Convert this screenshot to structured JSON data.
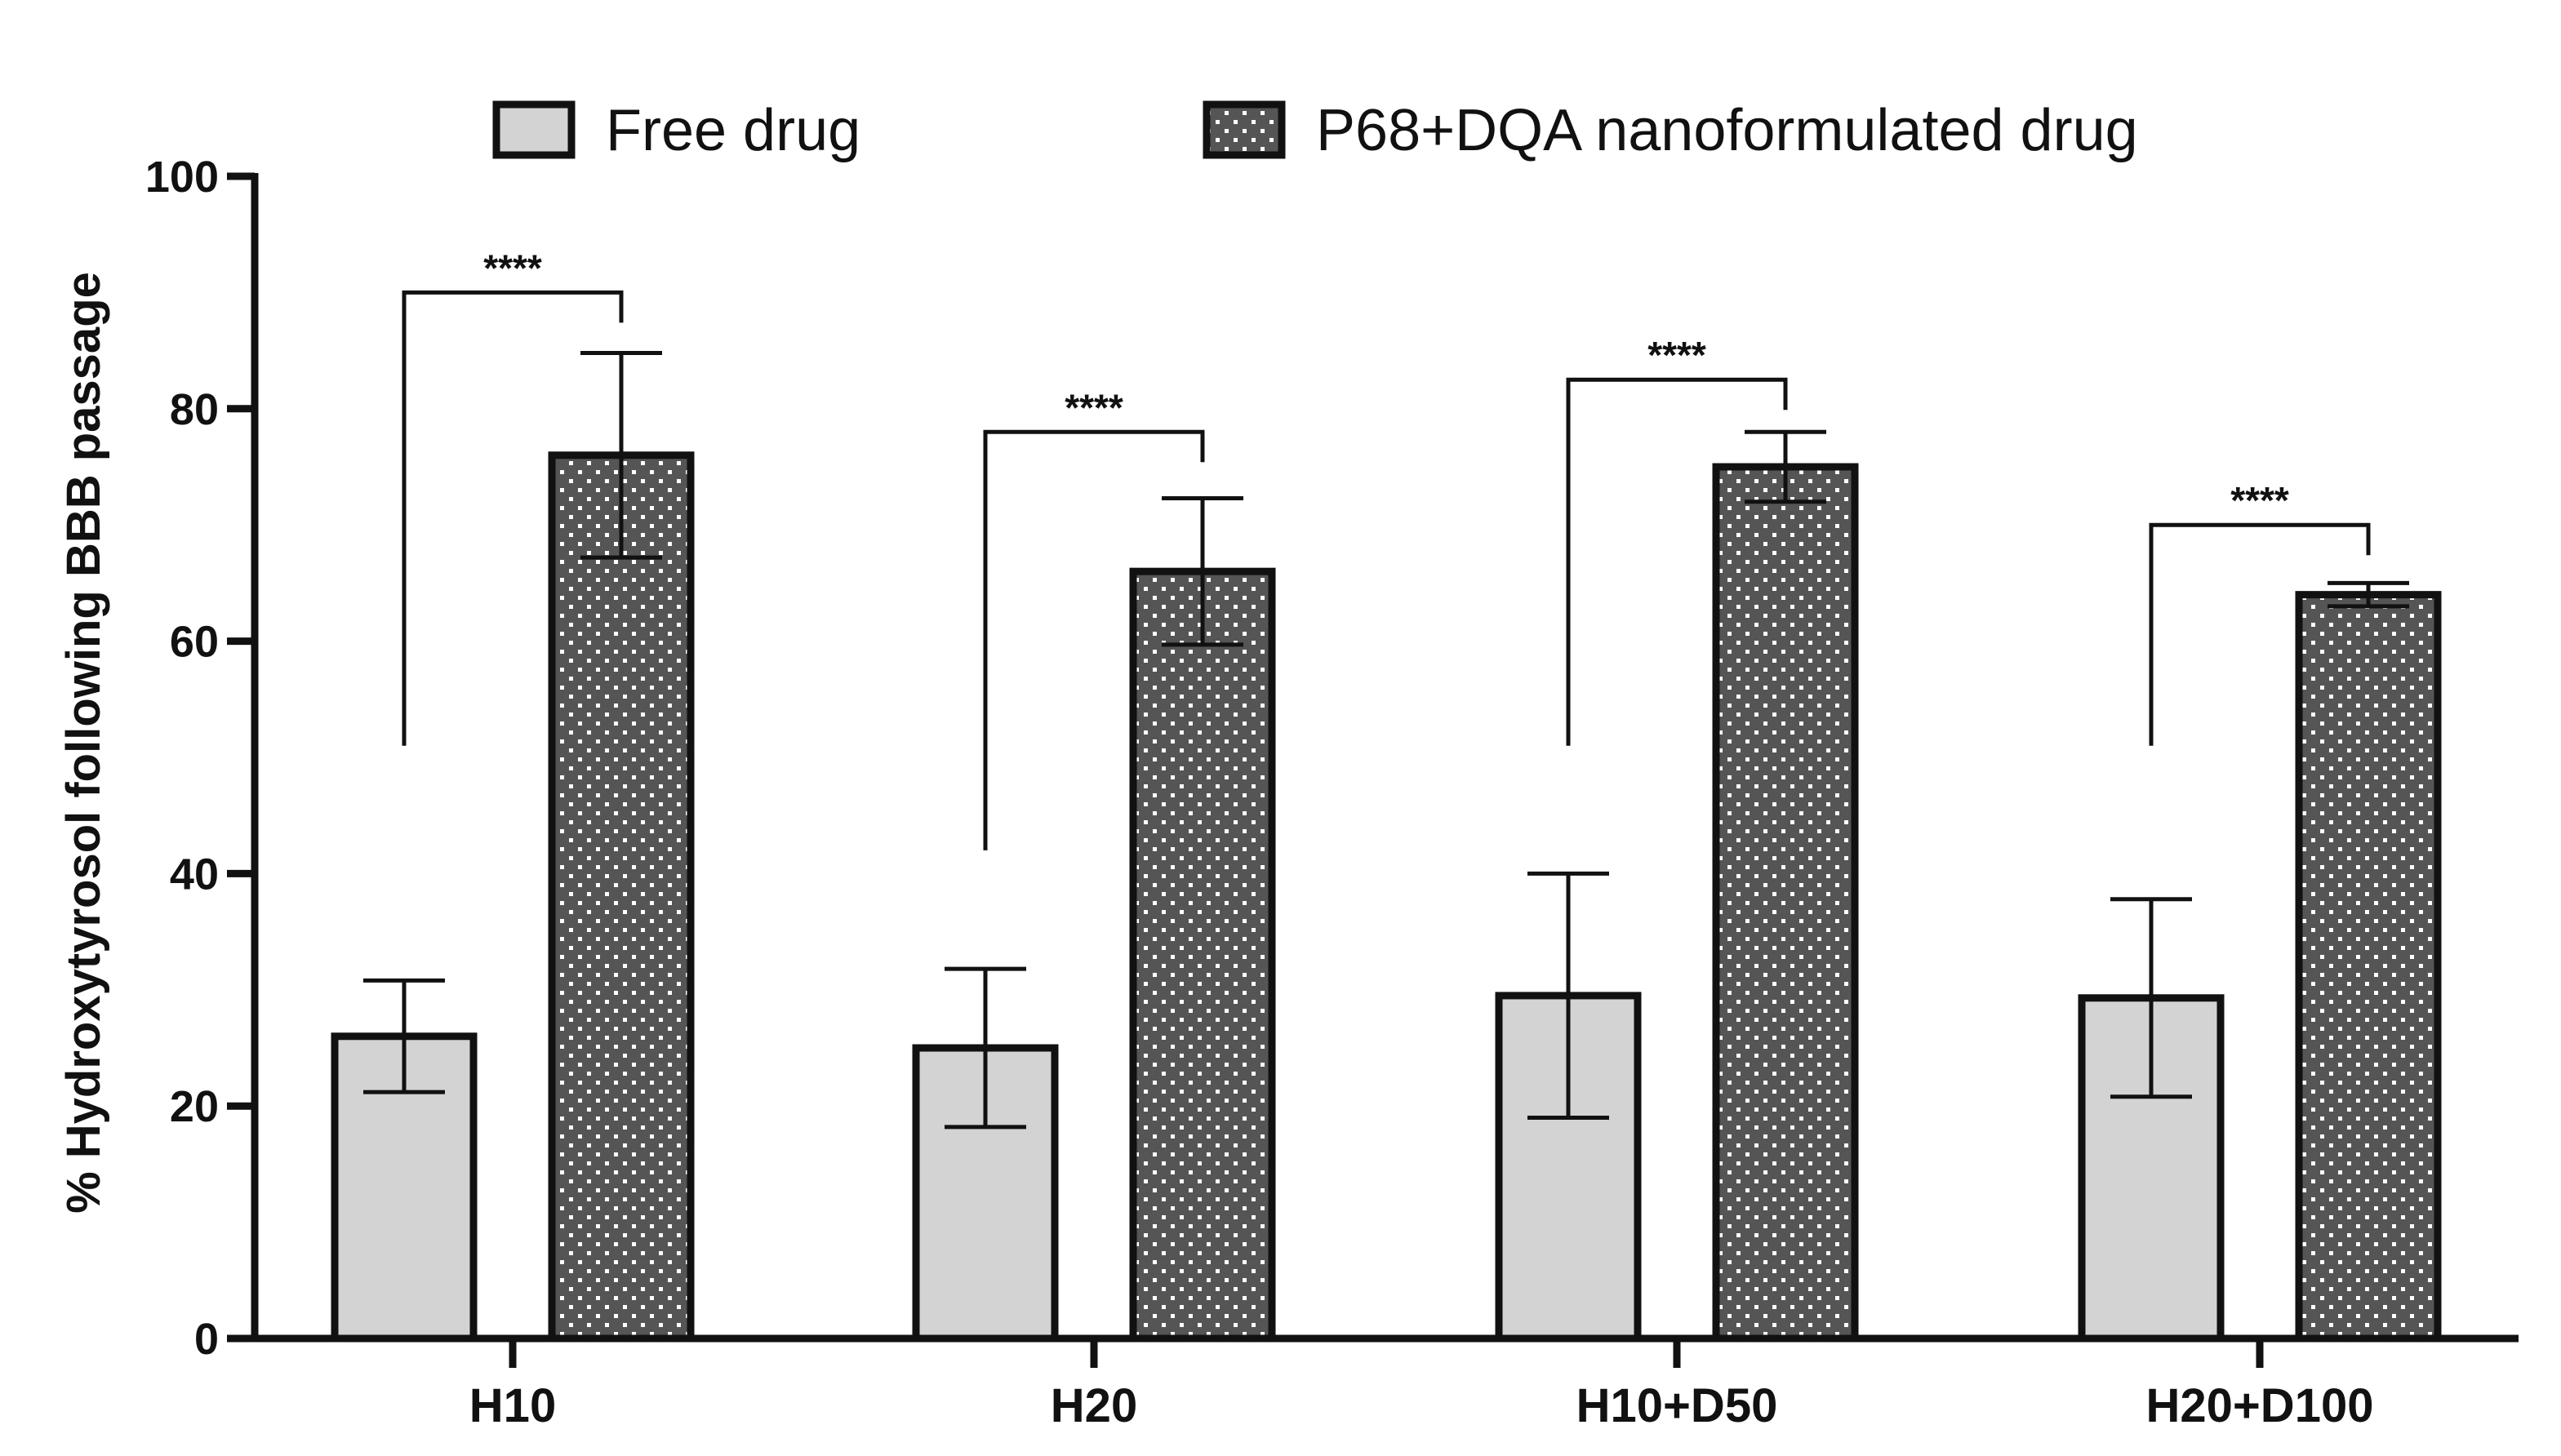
{
  "chart_data": {
    "type": "bar",
    "title": "",
    "xlabel": "",
    "ylabel": "% Hydroxytyrosol following BBB passage",
    "ylim": [
      0,
      100
    ],
    "yticks": [
      0,
      20,
      40,
      60,
      80,
      100
    ],
    "categories": [
      "H10",
      "H20",
      "H10+D50",
      "H20+D100"
    ],
    "series": [
      {
        "name": "Free drug",
        "values": [
          26,
          25,
          29.5,
          29.3
        ],
        "errors": [
          4.8,
          6.8,
          10.5,
          8.5
        ],
        "color": "#d3d3d3",
        "pattern": "solid"
      },
      {
        "name": "P68+DQA nanoformulated drug",
        "values": [
          76,
          66,
          75,
          64
        ],
        "errors": [
          8.8,
          6.3,
          3.0,
          1.0
        ],
        "color": "#555555",
        "pattern": "dots"
      }
    ],
    "significance": [
      {
        "category": "H10",
        "label": "****",
        "from": 51,
        "bracket": 90
      },
      {
        "category": "H20",
        "label": "****",
        "from": 42,
        "bracket": 78
      },
      {
        "category": "H10+D50",
        "label": "****",
        "from": 51,
        "bracket": 82.5
      },
      {
        "category": "H20+D100",
        "label": "****",
        "from": 51,
        "bracket": 70
      }
    ],
    "legend_position": "top"
  }
}
